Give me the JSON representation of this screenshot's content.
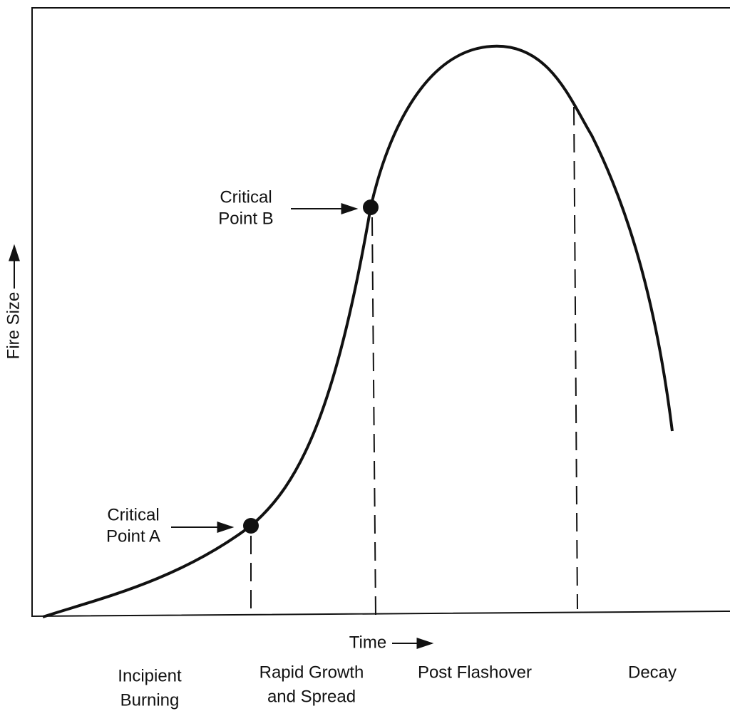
{
  "axes": {
    "y_label": "Fire Size",
    "x_label": "Time"
  },
  "points": [
    {
      "lines": [
        "Critical",
        "Point A"
      ]
    },
    {
      "lines": [
        "Critical",
        "Point B"
      ]
    }
  ],
  "phases": [
    {
      "lines": [
        "Incipient",
        "Burning"
      ]
    },
    {
      "lines": [
        "Rapid Growth",
        "and Spread"
      ]
    },
    {
      "lines": [
        "Post Flashover"
      ]
    },
    {
      "lines": [
        "Decay"
      ]
    }
  ]
}
